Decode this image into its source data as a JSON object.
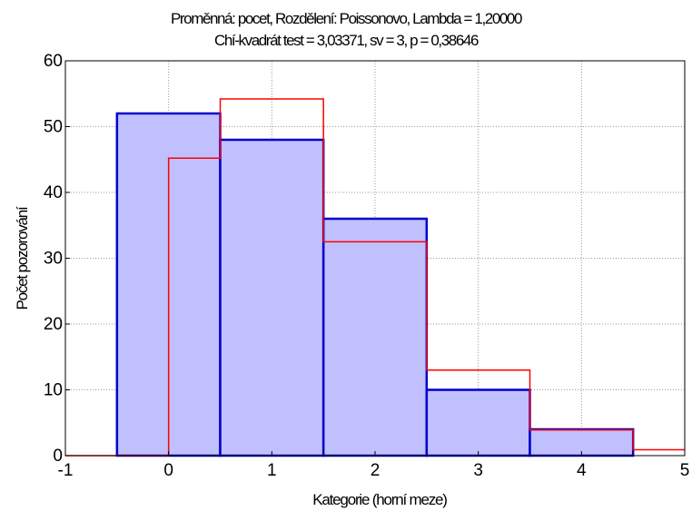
{
  "chart_data": {
    "type": "bar",
    "title": "Proměnná: pocet, Rozdělení: Poissonovo, Lambda = 1,20000",
    "subtitle": "Chí-kvadrát test = 3,03371, sv = 3, p = 0,38646",
    "xlabel": "Kategorie (horní meze)",
    "ylabel": "Počet pozorování",
    "xlim": [
      -1,
      5
    ],
    "ylim": [
      0,
      60
    ],
    "xticks": [
      "-1",
      "0",
      "1",
      "2",
      "3",
      "4",
      "5"
    ],
    "yticks": [
      "0",
      "10",
      "20",
      "30",
      "40",
      "50",
      "60"
    ],
    "grid": true,
    "bars": {
      "categories": [
        0,
        1,
        2,
        3,
        4
      ],
      "values": [
        52,
        48,
        36,
        10,
        4
      ],
      "fill": "#c0c0ff",
      "stroke": "#0000cc"
    },
    "expected": {
      "x": [
        0,
        1,
        2,
        3,
        4,
        5
      ],
      "values": [
        45.2,
        54.2,
        32.5,
        13,
        3.9,
        0.9
      ],
      "color": "#ff0000"
    }
  }
}
